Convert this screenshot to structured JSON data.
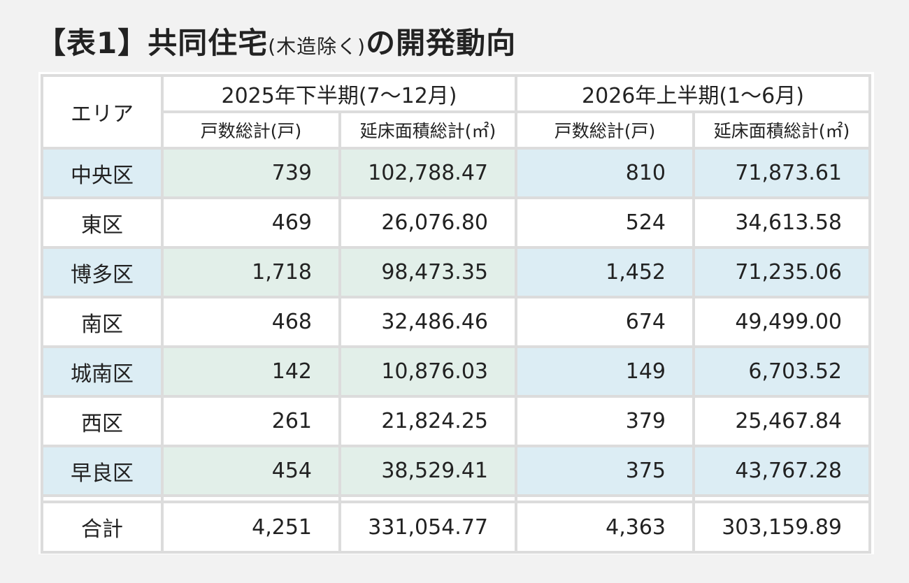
{
  "title": {
    "main": "【表1】共同住宅",
    "note": "(木造除く)",
    "tail": "の開発動向"
  },
  "table": {
    "corner": "エリア",
    "groups": [
      "2025年下半期(7～12月)",
      "2026年上半期(1～6月)"
    ],
    "subheaders": [
      "戸数総計(戸)",
      "延床面積総計(㎡)",
      "戸数総計(戸)",
      "延床面積総計(㎡)"
    ],
    "rows": [
      [
        "中央区",
        "739",
        "102,788.47",
        "810",
        "71,873.61"
      ],
      [
        "東区",
        "469",
        "26,076.80",
        "524",
        "34,613.58"
      ],
      [
        "博多区",
        "1,718",
        "98,473.35",
        "1,452",
        "71,235.06"
      ],
      [
        "南区",
        "468",
        "32,486.46",
        "674",
        "49,499.00"
      ],
      [
        "城南区",
        "142",
        "10,876.03",
        "149",
        "6,703.52"
      ],
      [
        "西区",
        "261",
        "21,824.25",
        "379",
        "25,467.84"
      ],
      [
        "早良区",
        "454",
        "38,529.41",
        "375",
        "43,767.28"
      ]
    ],
    "total": [
      "合計",
      "4,251",
      "331,054.77",
      "4,363",
      "303,159.89"
    ]
  }
}
